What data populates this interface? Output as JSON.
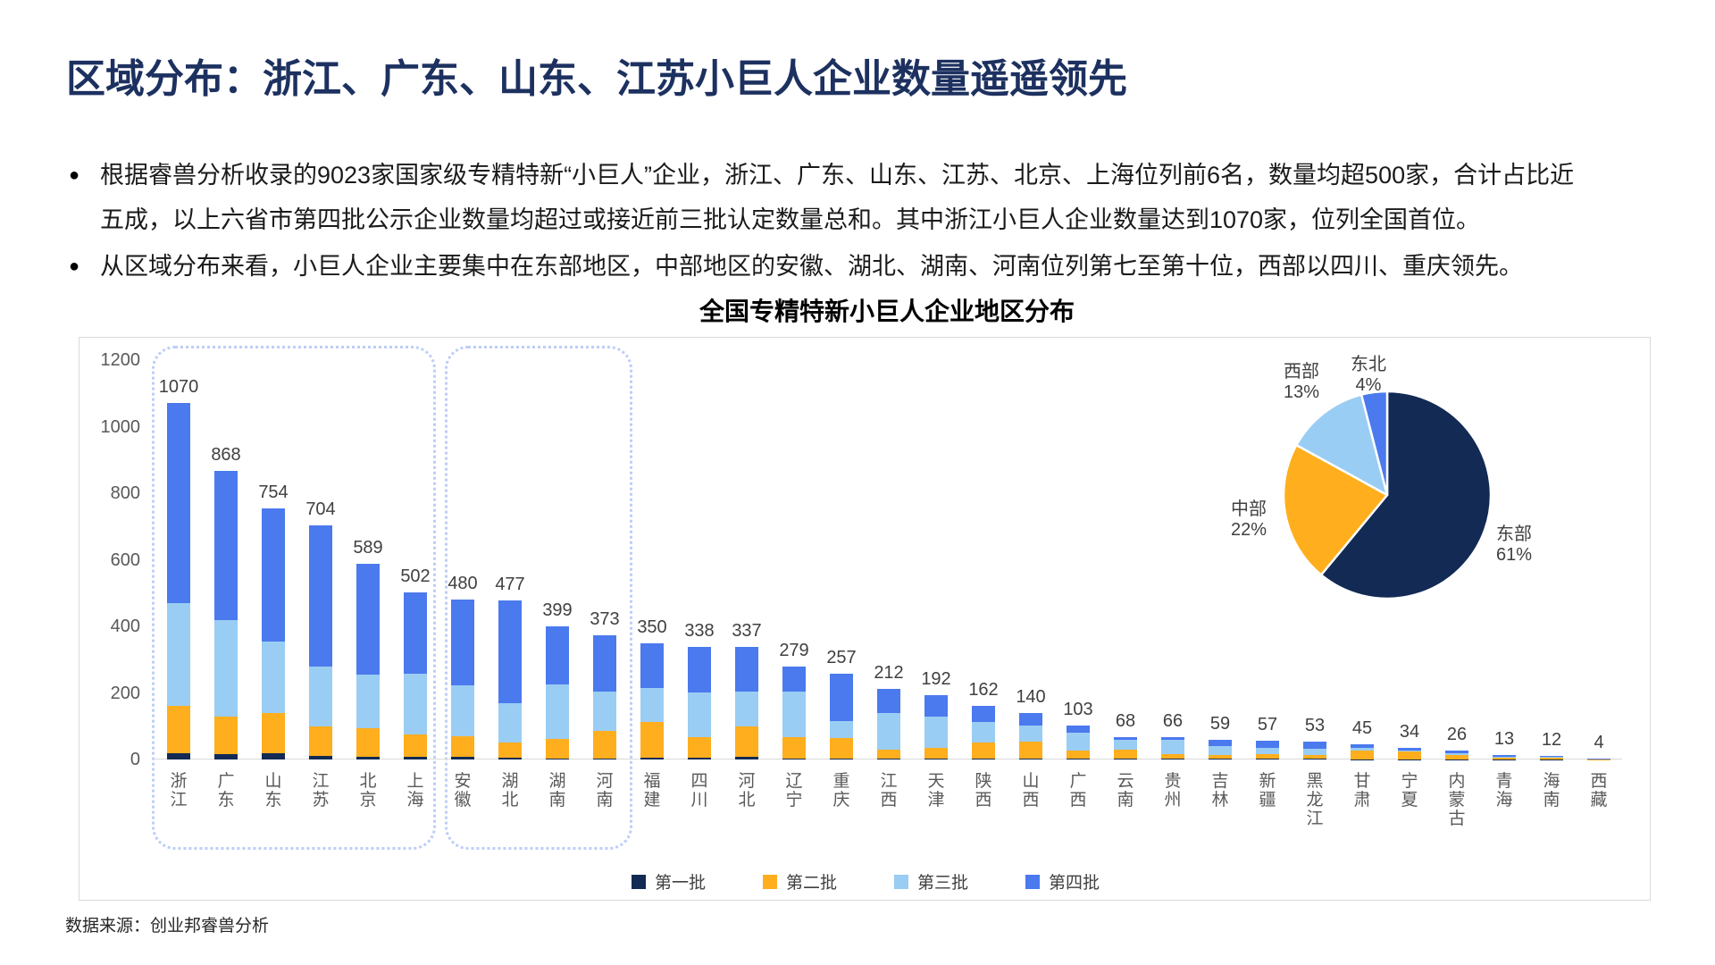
{
  "slide": {
    "title": "区域分布：浙江、广东、山东、江苏小巨人企业数量遥遥领先",
    "bullets": [
      {
        "marker": "●",
        "text": "根据睿兽分析收录的9023家国家级专精特新“小巨人”企业，浙江、广东、山东、江苏、北京、上海位列前6名，数量均超500家，合计占比近\n五成，以上六省市第四批公示企业数量均超过或接近前三批认定数量总和。其中浙江小巨人企业数量达到1070家，位列全国首位。"
      },
      {
        "marker": "●",
        "text": "从区域分布来看，小巨人企业主要集中在东部地区，中部地区的安徽、湖北、湖南、河南位列第七至第十位，西部以四川、重庆领先。"
      }
    ],
    "source": "数据来源：创业邦睿兽分析"
  },
  "colors": {
    "title_navy": "#1D3160",
    "batch1_navy": "#122A54",
    "batch2_orange": "#FFAE1E",
    "batch3_lightblue": "#9ACDF3",
    "batch4_blue": "#4B79EE",
    "box_border": "#D9D9D9",
    "dashed_highlight": "#BCCEF8",
    "axis_gray": "#595959",
    "label_gray": "#404040"
  },
  "chart_data": [
    {
      "type": "bar",
      "stacked": true,
      "title": "全国专精特新小巨人企业地区分布",
      "categories": [
        "浙江",
        "广东",
        "山东",
        "江苏",
        "北京",
        "上海",
        "安徽",
        "湖北",
        "湖南",
        "河南",
        "福建",
        "四川",
        "河北",
        "辽宁",
        "重庆",
        "江西",
        "天津",
        "陕西",
        "山西",
        "广西",
        "云南",
        "贵州",
        "吉林",
        "新疆",
        "黑龙江",
        "甘肃",
        "宁夏",
        "内蒙古",
        "青海",
        "海南",
        "西藏"
      ],
      "totals": [
        1070,
        868,
        754,
        704,
        589,
        502,
        480,
        477,
        399,
        373,
        350,
        338,
        337,
        279,
        257,
        212,
        192,
        162,
        140,
        103,
        68,
        66,
        59,
        57,
        53,
        45,
        34,
        26,
        13,
        12,
        4
      ],
      "series": [
        {
          "name": "第一批",
          "color": "#122A54",
          "values": [
            20,
            15,
            20,
            10,
            8,
            8,
            8,
            5,
            3,
            2,
            5,
            5,
            8,
            3,
            3,
            3,
            2,
            4,
            2,
            2,
            2,
            2,
            2,
            2,
            2,
            1,
            1,
            1,
            1,
            1,
            0
          ]
        },
        {
          "name": "第二批",
          "color": "#FFAE1E",
          "values": [
            140,
            115,
            120,
            90,
            86,
            67,
            61,
            45,
            58,
            85,
            107,
            61,
            92,
            63,
            61,
            26,
            34,
            46,
            51,
            24,
            28,
            13,
            11,
            14,
            12,
            26,
            22,
            13,
            6,
            5,
            1
          ]
        },
        {
          "name": "第三批",
          "color": "#9ACDF3",
          "values": [
            310,
            290,
            215,
            179,
            161,
            183,
            153,
            118,
            165,
            118,
            104,
            136,
            103,
            139,
            51,
            110,
            94,
            62,
            50,
            55,
            28,
            43,
            28,
            20,
            19,
            8,
            5,
            4,
            2,
            2,
            1
          ]
        },
        {
          "name": "第四批",
          "color": "#4B79EE",
          "values": [
            600,
            448,
            399,
            425,
            334,
            244,
            258,
            309,
            173,
            168,
            134,
            136,
            134,
            74,
            142,
            73,
            62,
            50,
            37,
            22,
            10,
            8,
            18,
            21,
            20,
            10,
            6,
            8,
            4,
            4,
            2
          ]
        }
      ],
      "y_ticks": [
        1200,
        1000,
        800,
        600,
        400,
        200,
        0
      ],
      "ylim": [
        0,
        1200
      ],
      "grid": false,
      "legend_position": "bottom",
      "highlight_groups": [
        {
          "from_category": "浙江",
          "to_category": "上海"
        },
        {
          "from_category": "安徽",
          "to_category": "河南"
        }
      ]
    },
    {
      "type": "pie",
      "labels": [
        "东部",
        "中部",
        "西部",
        "东北"
      ],
      "values": [
        61,
        22,
        13,
        4
      ],
      "unit": "%",
      "colors": [
        "#122A54",
        "#FFAE1E",
        "#9ACDF3",
        "#4B79EE"
      ],
      "start_angle_deg": 0,
      "direction": "clockwise"
    }
  ]
}
